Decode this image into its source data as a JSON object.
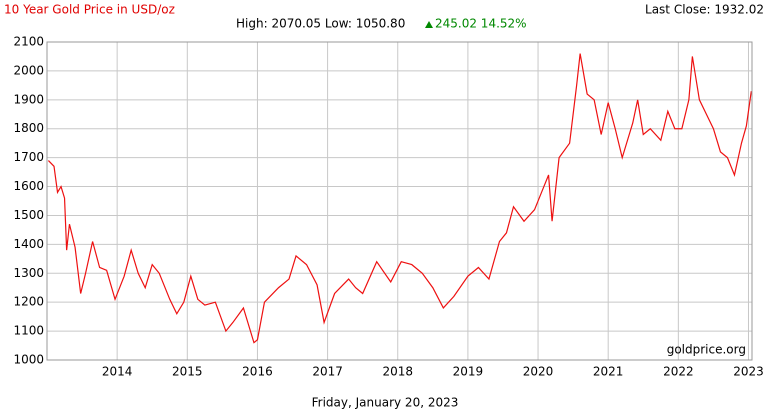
{
  "chart_data": {
    "type": "line",
    "title": "10 Year Gold Price in USD/oz",
    "last_close": "Last Close: 1932.02",
    "high_low": "High: 2070.05 Low: 1050.80",
    "change": "245.02 14.52%",
    "source": "goldprice.org",
    "date": "Friday, January 20, 2023",
    "xlim": [
      2013.0,
      2023.05
    ],
    "xticks": [
      2014,
      2015,
      2016,
      2017,
      2018,
      2019,
      2020,
      2021,
      2022,
      2023
    ],
    "ylim": [
      1000,
      2100
    ],
    "yticks": [
      1000,
      1100,
      1200,
      1300,
      1400,
      1500,
      1600,
      1700,
      1800,
      1900,
      2000,
      2100
    ],
    "grid": true,
    "series": [
      {
        "name": "Gold",
        "color": "#ee1111",
        "x": [
          2013.02,
          2013.1,
          2013.15,
          2013.2,
          2013.25,
          2013.28,
          2013.32,
          2013.4,
          2013.48,
          2013.55,
          2013.65,
          2013.75,
          2013.85,
          2013.97,
          2014.1,
          2014.2,
          2014.3,
          2014.4,
          2014.5,
          2014.6,
          2014.75,
          2014.85,
          2014.95,
          2015.05,
          2015.15,
          2015.25,
          2015.4,
          2015.55,
          2015.65,
          2015.8,
          2015.95,
          2016.0,
          2016.1,
          2016.3,
          2016.45,
          2016.55,
          2016.7,
          2016.85,
          2016.95,
          2017.1,
          2017.3,
          2017.4,
          2017.5,
          2017.7,
          2017.9,
          2018.05,
          2018.2,
          2018.35,
          2018.5,
          2018.65,
          2018.8,
          2019.0,
          2019.15,
          2019.3,
          2019.45,
          2019.55,
          2019.65,
          2019.8,
          2019.95,
          2020.05,
          2020.15,
          2020.2,
          2020.3,
          2020.45,
          2020.55,
          2020.6,
          2020.7,
          2020.8,
          2020.9,
          2021.0,
          2021.1,
          2021.2,
          2021.35,
          2021.42,
          2021.5,
          2021.6,
          2021.75,
          2021.85,
          2021.95,
          2022.05,
          2022.15,
          2022.2,
          2022.3,
          2022.4,
          2022.5,
          2022.6,
          2022.7,
          2022.8,
          2022.9,
          2022.97,
          2023.04
        ],
        "values": [
          1690,
          1670,
          1580,
          1600,
          1560,
          1380,
          1470,
          1390,
          1230,
          1300,
          1410,
          1320,
          1310,
          1210,
          1290,
          1380,
          1300,
          1250,
          1330,
          1300,
          1210,
          1160,
          1200,
          1290,
          1210,
          1190,
          1200,
          1100,
          1130,
          1180,
          1060,
          1070,
          1200,
          1250,
          1280,
          1360,
          1330,
          1260,
          1130,
          1230,
          1280,
          1250,
          1230,
          1340,
          1270,
          1340,
          1330,
          1300,
          1250,
          1180,
          1220,
          1290,
          1320,
          1280,
          1410,
          1440,
          1530,
          1480,
          1520,
          1580,
          1640,
          1480,
          1700,
          1750,
          1950,
          2060,
          1920,
          1900,
          1780,
          1890,
          1800,
          1700,
          1820,
          1900,
          1780,
          1800,
          1760,
          1860,
          1800,
          1800,
          1900,
          2050,
          1900,
          1850,
          1800,
          1720,
          1700,
          1640,
          1750,
          1810,
          1930
        ]
      }
    ]
  }
}
